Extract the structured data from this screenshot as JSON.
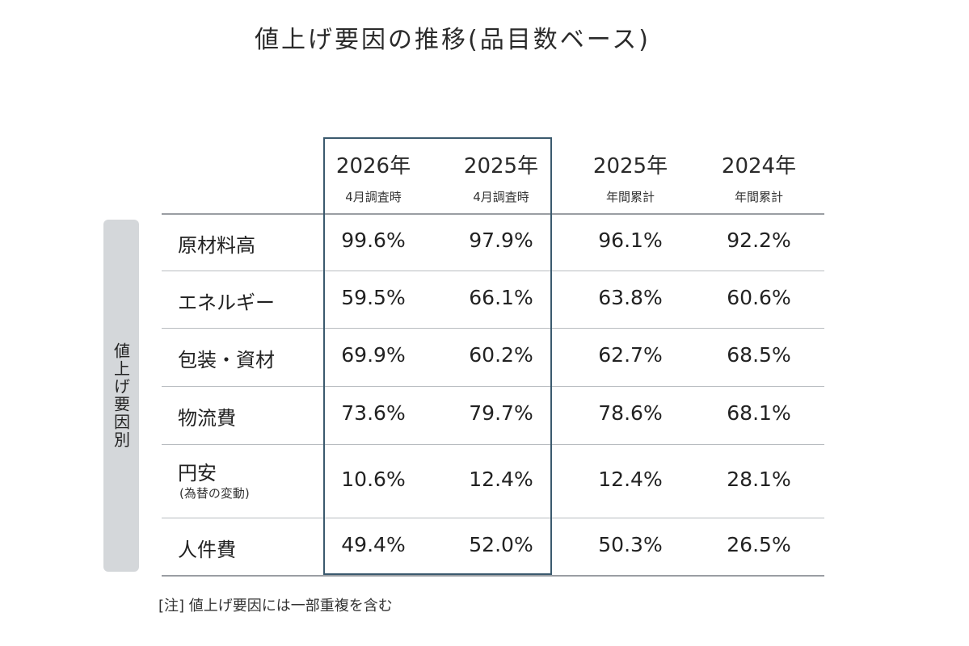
{
  "title": "値上げ要因の推移(品目数ベース)",
  "side_label": "値上げ要因別",
  "note": "[注] 値上げ要因には一部重複を含む",
  "chart_data": {
    "type": "table",
    "columns": [
      {
        "year": "2026年",
        "sub": "4月調査時"
      },
      {
        "year": "2025年",
        "sub": "4月調査時"
      },
      {
        "year": "2025年",
        "sub": "年間累計"
      },
      {
        "year": "2024年",
        "sub": "年間累計"
      }
    ],
    "rows": [
      {
        "label": "原材料高",
        "note": "",
        "values": [
          "99.6%",
          "97.9%",
          "96.1%",
          "92.2%"
        ]
      },
      {
        "label": "エネルギー",
        "note": "",
        "values": [
          "59.5%",
          "66.1%",
          "63.8%",
          "60.6%"
        ]
      },
      {
        "label": "包装・資材",
        "note": "",
        "values": [
          "69.9%",
          "60.2%",
          "62.7%",
          "68.5%"
        ]
      },
      {
        "label": "物流費",
        "note": "",
        "values": [
          "73.6%",
          "79.7%",
          "78.6%",
          "68.1%"
        ]
      },
      {
        "label": "円安",
        "note": "(為替の変動)",
        "values": [
          "10.6%",
          "12.4%",
          "12.4%",
          "28.1%"
        ]
      },
      {
        "label": "人件費",
        "note": "",
        "values": [
          "49.4%",
          "52.0%",
          "50.3%",
          "26.5%"
        ]
      }
    ]
  }
}
